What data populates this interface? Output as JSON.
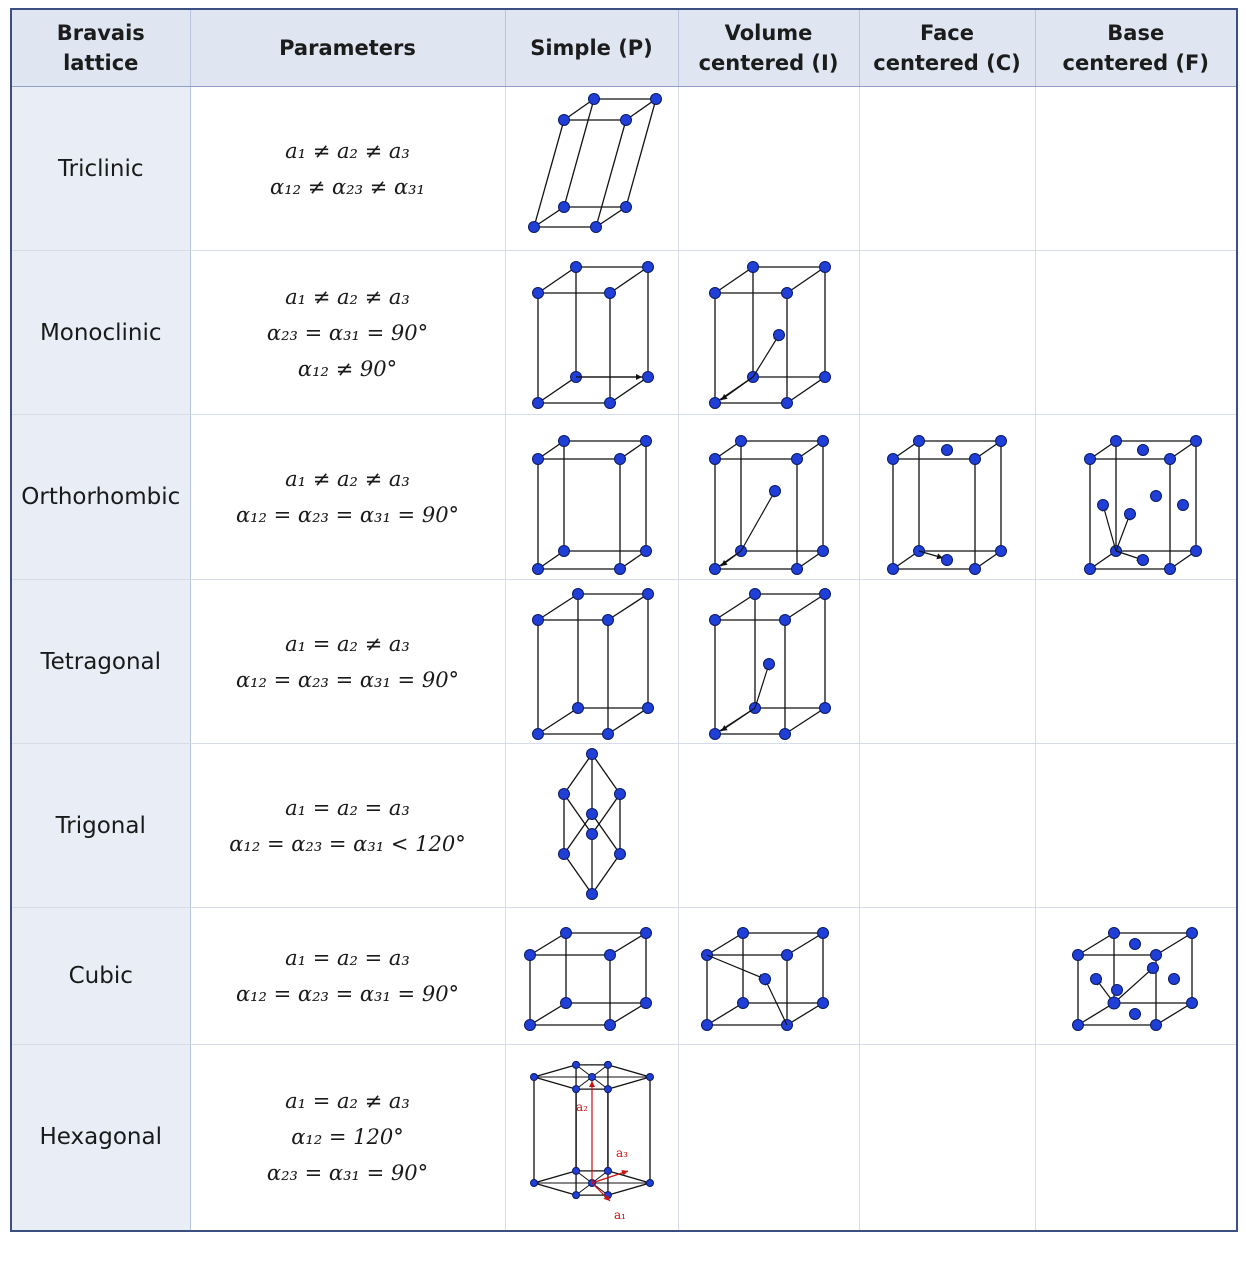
{
  "headers": [
    "Bravais\nlattice",
    "Parameters",
    "Simple (P)",
    "Volume\ncentered (I)",
    "Face\ncentered (C)",
    "Base\ncentered (F)"
  ],
  "rows": [
    {
      "name": "Triclinic",
      "params": [
        "a₁ ≠ a₂ ≠ a₃",
        "α₁₂ ≠ α₂₃ ≠ α₃₁"
      ]
    },
    {
      "name": "Monoclinic",
      "params": [
        "a₁ ≠ a₂ ≠ a₃",
        "α₂₃ = α₃₁ = 90°",
        "α₁₂ ≠ 90°"
      ]
    },
    {
      "name": "Orthorhombic",
      "params": [
        "a₁ ≠ a₂ ≠ a₃",
        "α₁₂ = α₂₃ = α₃₁ = 90°"
      ]
    },
    {
      "name": "Tetragonal",
      "params": [
        "a₁ = a₂ ≠ a₃",
        "α₁₂ = α₂₃ = α₃₁ = 90°"
      ]
    },
    {
      "name": "Trigonal",
      "params": [
        "a₁ = a₂ = a₃",
        "α₁₂ = α₂₃ = α₃₁ < 120°"
      ]
    },
    {
      "name": "Cubic",
      "params": [
        "a₁ = a₂ = a₃",
        "α₁₂ = α₂₃ = α₃₁ = 90°"
      ]
    },
    {
      "name": "Hexagonal",
      "params": [
        "a₁ = a₂ ≠ a₃",
        "α₁₂ = 120°",
        "α₂₃ = α₃₁ = 90°"
      ]
    }
  ],
  "hex_axis_labels": [
    "a₁",
    "a₂",
    "a₃"
  ],
  "colors": {
    "atom": "#1f3fd6",
    "edge": "#111111",
    "vector": "#cc1111",
    "header_bg": "#dfe6f2",
    "name_bg": "#e9eef6"
  }
}
